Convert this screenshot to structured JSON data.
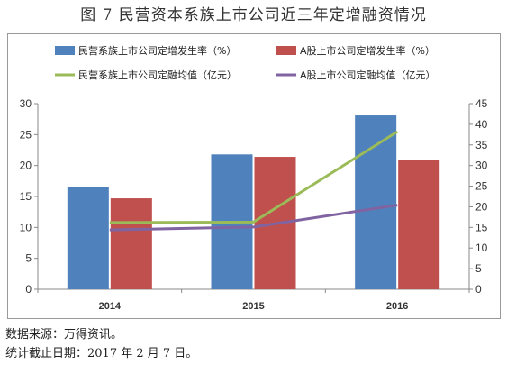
{
  "figure": {
    "title": "图 7 民营资本系族上市公司近三年定增融资情况",
    "source_note": "数据来源：万得资讯。",
    "date_note": "统计截止日期：2017 年 2 月 7 日。"
  },
  "chart_data": {
    "type": "bar",
    "categories": [
      "2014",
      "2015",
      "2016"
    ],
    "series": [
      {
        "name": "民营系族上市公司定增发生率（%）",
        "type": "bar",
        "axis": "left",
        "color": "#4F81BD",
        "values": [
          16.5,
          21.8,
          28.1
        ]
      },
      {
        "name": "A股上市公司定增发生率（%）",
        "type": "bar",
        "axis": "left",
        "color": "#C0504D",
        "values": [
          14.7,
          21.4,
          20.9
        ]
      },
      {
        "name": "民营系族上市公司定融均值（亿元）",
        "type": "line",
        "axis": "right",
        "color": "#9BBB59",
        "values": [
          16.2,
          16.3,
          38.2
        ]
      },
      {
        "name": "A股上市公司定融均值（亿元）",
        "type": "line",
        "axis": "right",
        "color": "#8064A2",
        "values": [
          14.4,
          15.1,
          20.4
        ]
      }
    ],
    "y_left": {
      "range": [
        0,
        30
      ],
      "ticks": [
        "0",
        "5",
        "10",
        "15",
        "20",
        "25",
        "30"
      ]
    },
    "y_right": {
      "range": [
        0,
        45
      ],
      "ticks": [
        "0",
        "5",
        "10",
        "15",
        "20",
        "25",
        "30",
        "35",
        "40",
        "45"
      ]
    },
    "grid": false,
    "legend_position": "top"
  }
}
